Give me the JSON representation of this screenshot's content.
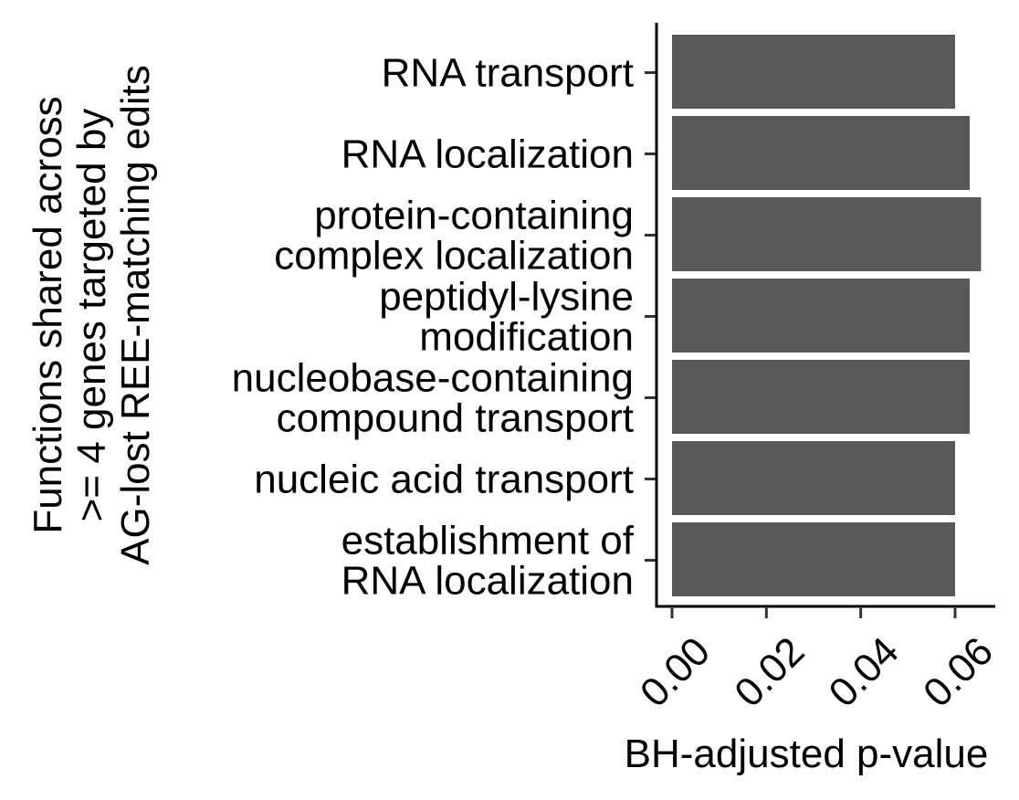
{
  "chart_data": {
    "type": "bar",
    "orientation": "horizontal",
    "categories": [
      "RNA transport",
      "RNA localization",
      "protein-containing\ncomplex localization",
      "peptidyl-lysine\nmodification",
      "nucleobase-containing\ncompound transport",
      "nucleic acid transport",
      "establishment of\nRNA localization"
    ],
    "values": [
      0.06,
      0.0631,
      0.0655,
      0.0631,
      0.0631,
      0.06,
      0.06
    ],
    "xlabel": "BH-adjusted p-value",
    "ylabel_lines": [
      "Functions shared across",
      ">= 4 genes targeted by",
      "AG-lost REE-matching edits"
    ],
    "xlim": [
      0,
      0.068
    ],
    "x_ticks": [
      0.0,
      0.02,
      0.04,
      0.06
    ],
    "x_tick_labels": [
      "0.00",
      "0.02",
      "0.04",
      "0.06"
    ],
    "grid": false,
    "legend": "none",
    "bar_color": "#595959"
  }
}
